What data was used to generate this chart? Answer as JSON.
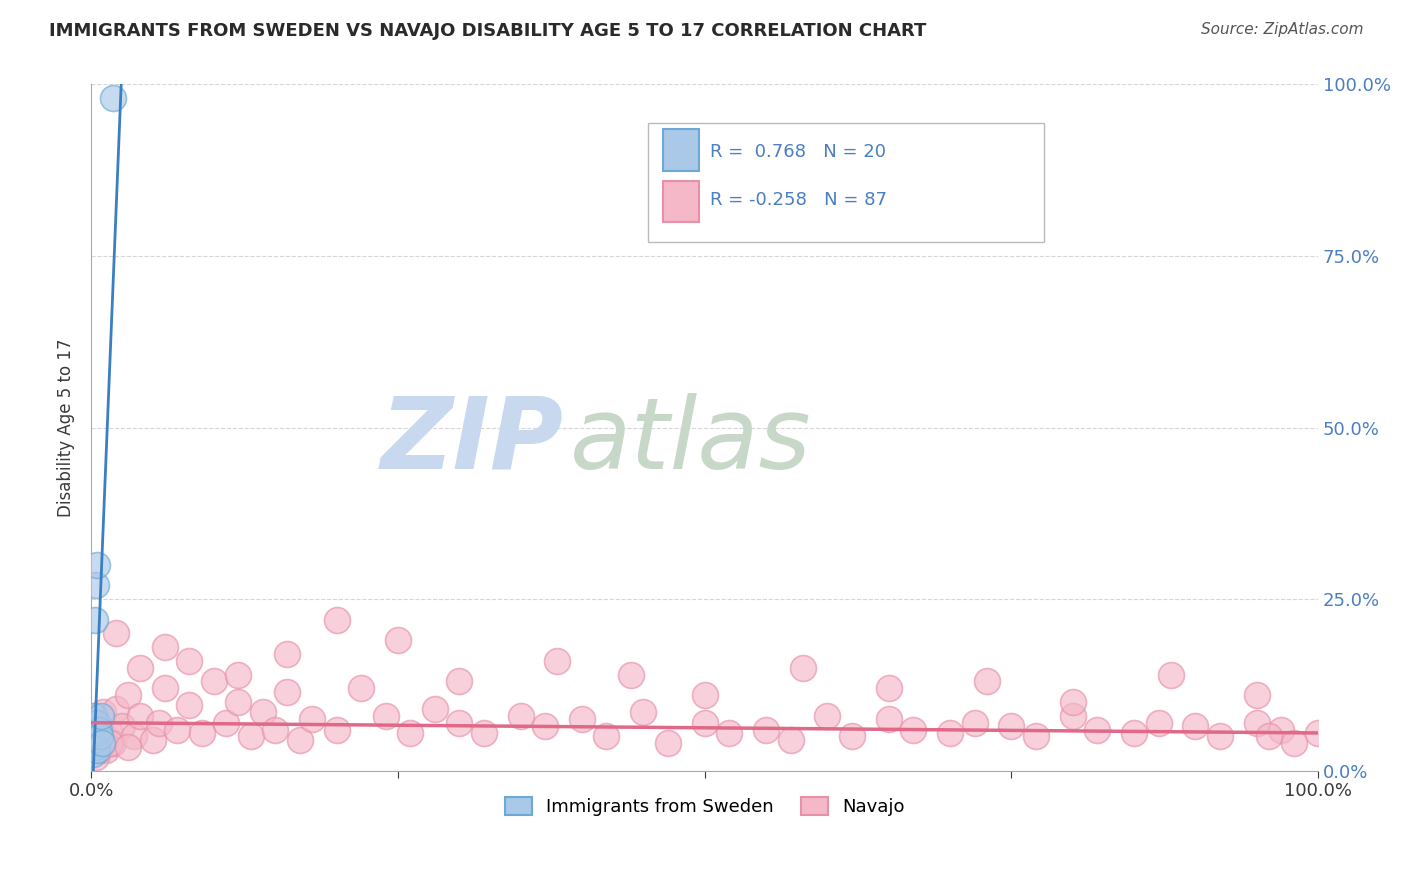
{
  "title": "IMMIGRANTS FROM SWEDEN VS NAVAJO DISABILITY AGE 5 TO 17 CORRELATION CHART",
  "source": "Source: ZipAtlas.com",
  "ylabel": "Disability Age 5 to 17",
  "yticks": [
    "0.0%",
    "25.0%",
    "50.0%",
    "75.0%",
    "100.0%"
  ],
  "ytick_vals": [
    0,
    25,
    50,
    75,
    100
  ],
  "legend1_label": "Immigrants from Sweden",
  "legend2_label": "Navajo",
  "R1": 0.768,
  "N1": 20,
  "R2": -0.258,
  "N2": 87,
  "color_blue_fill": "#aac8e8",
  "color_pink_fill": "#f4b8c8",
  "color_blue_edge": "#6aaad4",
  "color_pink_edge": "#e890a8",
  "color_blue_line": "#3a7fc1",
  "color_pink_line": "#e06888",
  "color_title": "#3a3a3a",
  "color_stats": "#4a7fc1",
  "watermark_zip": "#c8d8ee",
  "watermark_atlas": "#c8d8c8",
  "xmin": 0,
  "xmax": 100,
  "ymin": 0,
  "ymax": 100,
  "figwidth": 14.06,
  "figheight": 8.92,
  "dpi": 100,
  "sweden_x": [
    0.1,
    0.15,
    0.18,
    0.2,
    0.22,
    0.25,
    0.28,
    0.3,
    0.35,
    0.4,
    0.45,
    0.5,
    0.6,
    0.7,
    0.8,
    0.9,
    0.3,
    0.4,
    0.5,
    1.8
  ],
  "sweden_y": [
    3.0,
    5.0,
    2.5,
    7.0,
    4.0,
    8.0,
    3.5,
    6.0,
    4.5,
    5.5,
    7.0,
    3.0,
    6.0,
    5.0,
    8.0,
    4.0,
    22.0,
    27.0,
    30.0,
    98.0
  ],
  "navajo_x": [
    0.1,
    0.2,
    0.3,
    0.5,
    0.8,
    1.0,
    1.2,
    1.5,
    1.8,
    2.0,
    2.5,
    3.0,
    3.5,
    4.0,
    5.0,
    5.5,
    6.0,
    7.0,
    8.0,
    9.0,
    10.0,
    11.0,
    12.0,
    13.0,
    14.0,
    15.0,
    16.0,
    17.0,
    18.0,
    20.0,
    22.0,
    24.0,
    26.0,
    28.0,
    30.0,
    32.0,
    35.0,
    37.0,
    40.0,
    42.0,
    45.0,
    47.0,
    50.0,
    52.0,
    55.0,
    57.0,
    60.0,
    62.0,
    65.0,
    67.0,
    70.0,
    72.0,
    75.0,
    77.0,
    80.0,
    82.0,
    85.0,
    87.0,
    90.0,
    92.0,
    95.0,
    97.0,
    100.0,
    2.0,
    4.0,
    6.0,
    8.0,
    12.0,
    16.0,
    20.0,
    25.0,
    30.0,
    38.0,
    44.0,
    50.0,
    58.0,
    65.0,
    73.0,
    80.0,
    88.0,
    95.0,
    0.4,
    0.6,
    1.5,
    3.0,
    98.0,
    96.0
  ],
  "navajo_y": [
    5.0,
    3.5,
    7.0,
    4.5,
    6.0,
    8.5,
    3.0,
    5.5,
    4.0,
    9.0,
    6.5,
    11.0,
    5.0,
    8.0,
    4.5,
    7.0,
    12.0,
    6.0,
    9.5,
    5.5,
    13.0,
    7.0,
    10.0,
    5.0,
    8.5,
    6.0,
    11.5,
    4.5,
    7.5,
    6.0,
    12.0,
    8.0,
    5.5,
    9.0,
    7.0,
    5.5,
    8.0,
    6.5,
    7.5,
    5.0,
    8.5,
    4.0,
    7.0,
    5.5,
    6.0,
    4.5,
    8.0,
    5.0,
    7.5,
    6.0,
    5.5,
    7.0,
    6.5,
    5.0,
    8.0,
    6.0,
    5.5,
    7.0,
    6.5,
    5.0,
    7.0,
    6.0,
    5.5,
    20.0,
    15.0,
    18.0,
    16.0,
    14.0,
    17.0,
    22.0,
    19.0,
    13.0,
    16.0,
    14.0,
    11.0,
    15.0,
    12.0,
    13.0,
    10.0,
    14.0,
    11.0,
    2.0,
    3.0,
    4.0,
    3.5,
    4.0,
    5.0
  ]
}
